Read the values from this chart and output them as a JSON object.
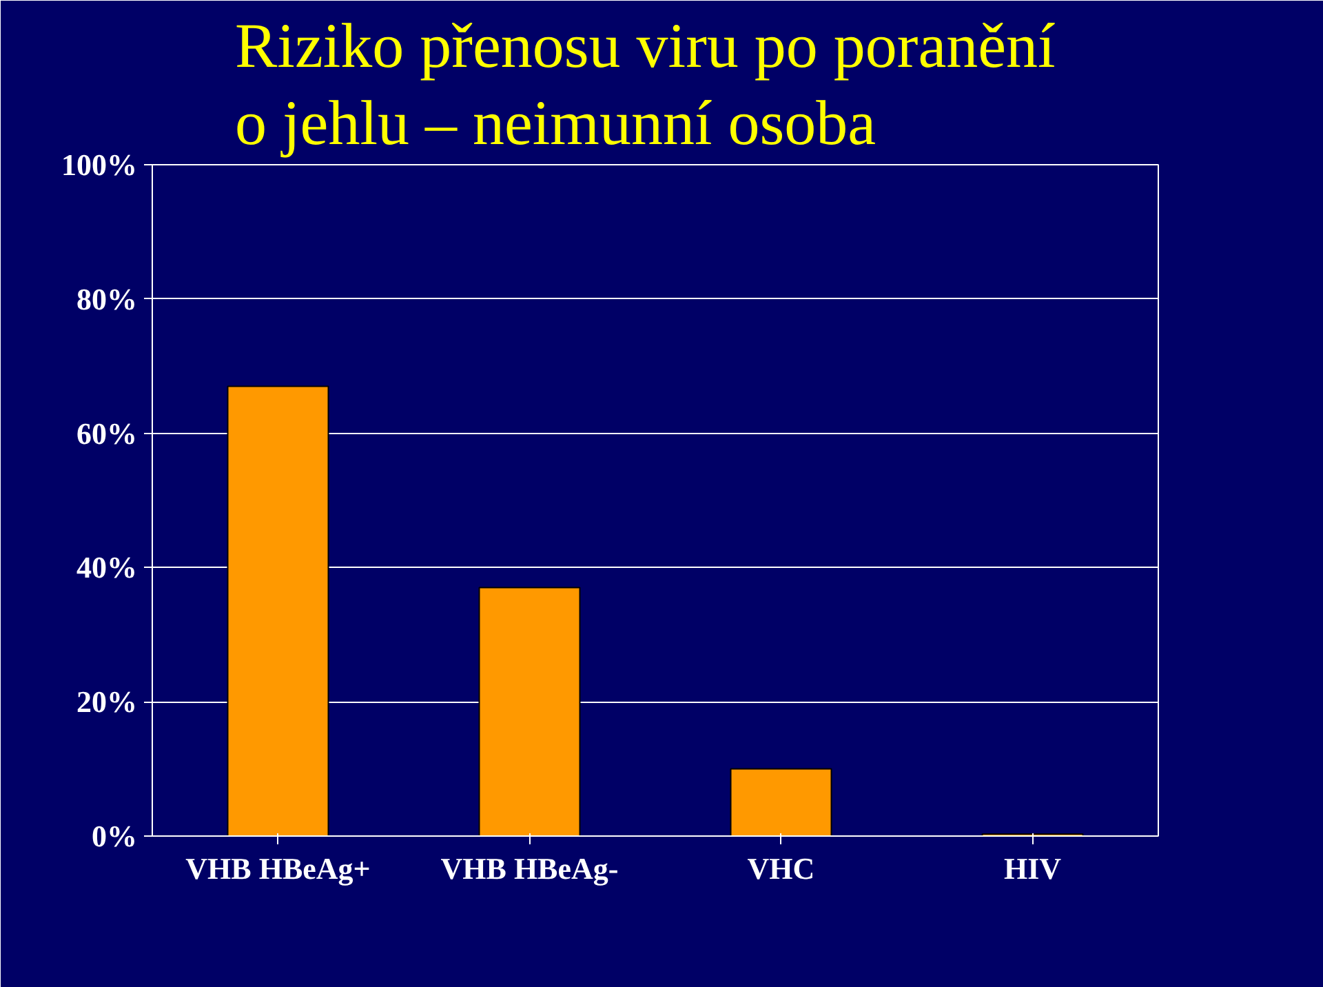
{
  "chart_data": {
    "type": "bar",
    "title": "Riziko přenosu viru po poranění\no jehlu – neimunní osoba",
    "categories": [
      "VHB HBeAg+",
      "VHB HBeAg-",
      "VHC",
      "HIV"
    ],
    "values": [
      67,
      37,
      10,
      0.3
    ],
    "color": "#ff9900",
    "ylim": [
      0,
      100
    ],
    "yticks": [
      {
        "value": 0,
        "label": "0%"
      },
      {
        "value": 20,
        "label": "20%"
      },
      {
        "value": 40,
        "label": "40%"
      },
      {
        "value": 60,
        "label": "60%"
      },
      {
        "value": 80,
        "label": "80%"
      },
      {
        "value": 100,
        "label": "100%"
      }
    ],
    "grid": "y"
  }
}
